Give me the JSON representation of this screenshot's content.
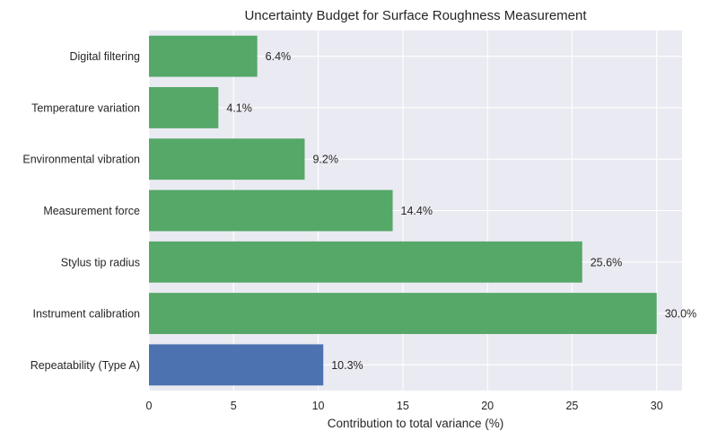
{
  "chart_data": {
    "type": "bar",
    "orientation": "horizontal",
    "title": "Uncertainty Budget for Surface Roughness Measurement",
    "xlabel": "Contribution to total variance (%)",
    "ylabel": "",
    "xlim": [
      0,
      31.5
    ],
    "xticks": [
      0,
      5,
      10,
      15,
      20,
      25,
      30
    ],
    "grid": true,
    "categories": [
      "Repeatability (Type A)",
      "Instrument calibration",
      "Stylus tip radius",
      "Measurement force",
      "Environmental vibration",
      "Temperature variation",
      "Digital filtering"
    ],
    "values": [
      10.3,
      30.0,
      25.6,
      14.4,
      9.2,
      4.1,
      6.4
    ],
    "value_labels": [
      "10.3%",
      "30.0%",
      "25.6%",
      "14.4%",
      "9.2%",
      "4.1%",
      "6.4%"
    ],
    "colors": [
      "#4c72b0",
      "#55a868",
      "#55a868",
      "#55a868",
      "#55a868",
      "#55a868",
      "#55a868"
    ],
    "background_color": "#eaeaf2",
    "grid_color": "#ffffff"
  }
}
